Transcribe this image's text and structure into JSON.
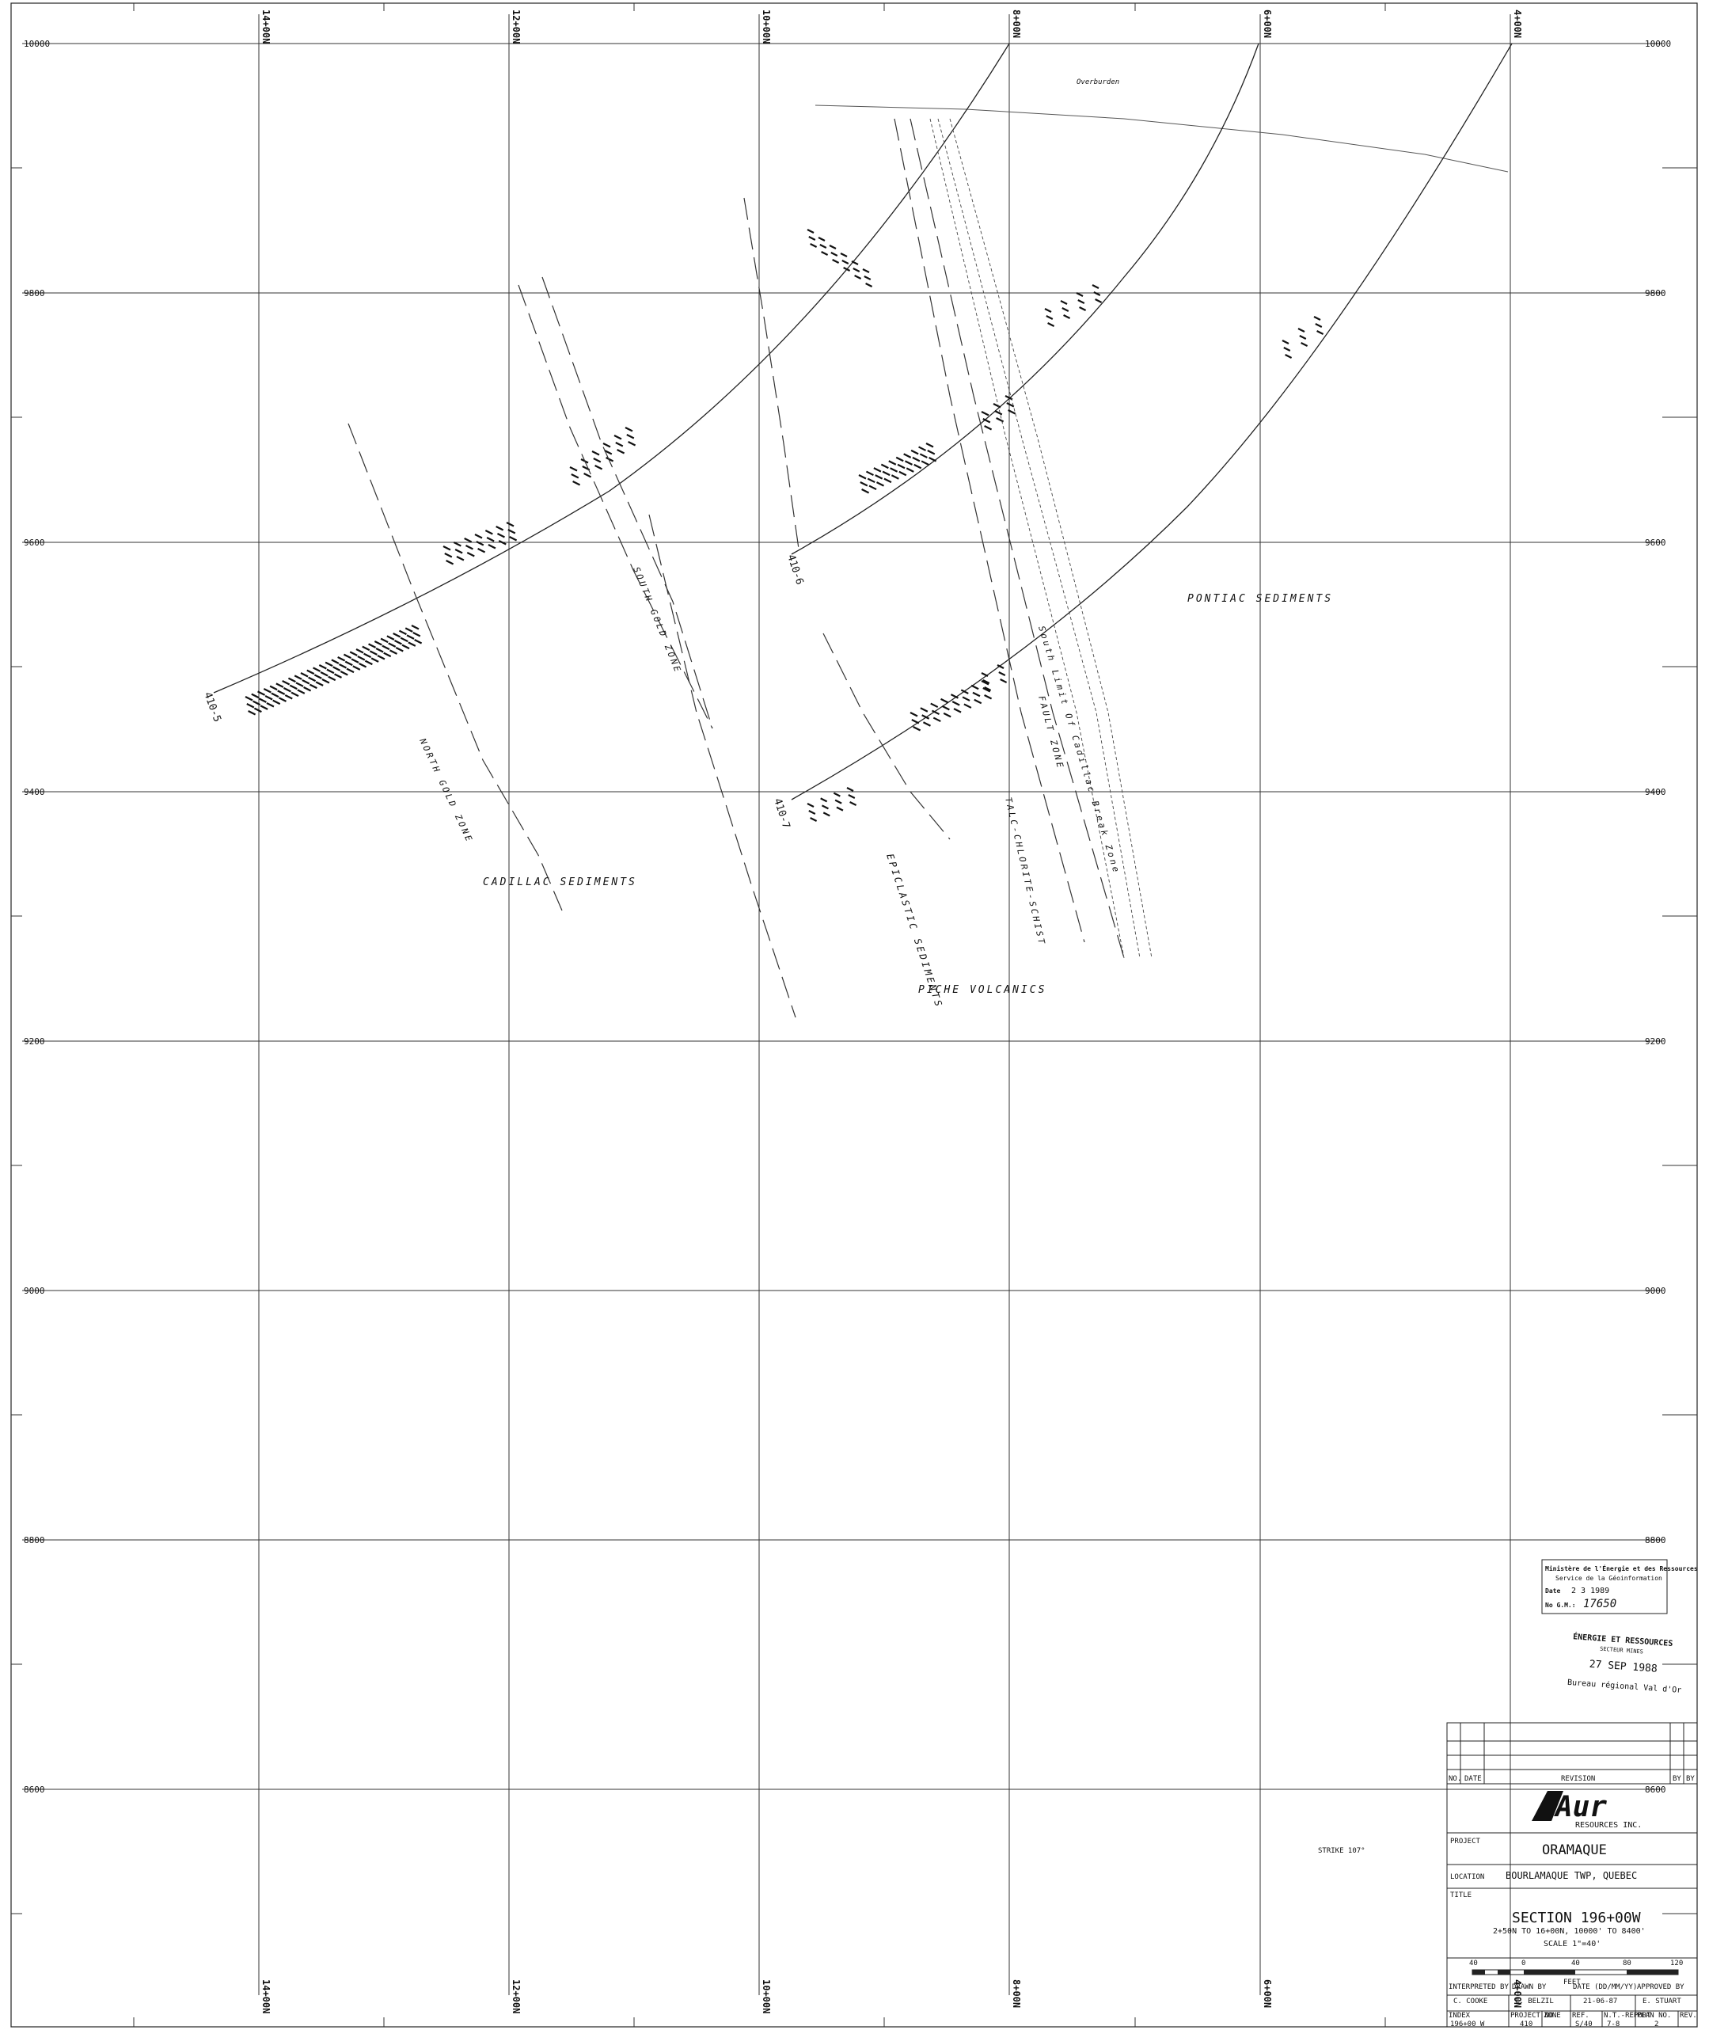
{
  "sheet": {
    "elevation_labels": [
      "10000",
      "9800",
      "9600",
      "9400",
      "9200",
      "9000",
      "8800",
      "8600"
    ],
    "section_labels": [
      "14+00N",
      "12+00N",
      "10+00N",
      "8+00N",
      "6+00N",
      "4+00N"
    ],
    "holes": [
      "410-5",
      "410-6",
      "410-7"
    ],
    "geology": {
      "cadillac": "CADILLAC SEDIMENTS",
      "pontiac": "PONTIAC SEDIMENTS",
      "piche": "PICHE VOLCANICS",
      "epiclastic": "EPICLASTIC SEDIMENTS",
      "north_gold": "NORTH GOLD ZONE",
      "south_gold": "SOUTH GOLD ZONE",
      "talc": "TALC-CHLORITE-SCHIST",
      "south_limit": "South Limit Of Cadillac Break Zone",
      "fault": "FAULT ZONE",
      "overburden": "Overburden"
    },
    "strike": "STRIKE 107°"
  },
  "stamps": {
    "ministry_line1": "Ministère de l'Énergie et des Ressources",
    "ministry_line2": "Service de la Géoinformation",
    "date_label": "Date",
    "date_value": "2 3 1989",
    "gm_label": "No G.M.:",
    "gm_value": "17650",
    "energie_line1": "ÉNERGIE ET RESSOURCES",
    "energie_line2": "SECTEUR MINES",
    "energie_date": "27 SEP 1988",
    "energie_office": "Bureau régional Val d'Or"
  },
  "title_block": {
    "rev_no": "NO.",
    "rev_date": "DATE",
    "rev_revision": "REVISION",
    "rev_by1": "BY",
    "rev_by2": "BY",
    "logo": "Aur",
    "logo_sub": "RESOURCES INC.",
    "project_label": "PROJECT",
    "project": "ORAMAQUE",
    "location_label": "LOCATION",
    "location": "BOURLAMAQUE TWP, QUEBEC",
    "title_label": "TITLE",
    "title": "SECTION 196+00W",
    "subtitle": "2+50N TO 16+00N, 10000' TO 8400'",
    "scale": "SCALE 1\"=40'",
    "scale_ticks": [
      "40",
      "0",
      "40",
      "80",
      "120"
    ],
    "scale_unit": "FEET",
    "interpreted_by_label": "INTERPRETED BY",
    "interpreted_by": "C. COOKE",
    "drawn_by_label": "DRAWN BY",
    "drawn_by": "C. BELZIL",
    "date_label": "DATE (DD/MM/YY)",
    "date": "21-06-87",
    "approved_by_label": "APPROVED BY",
    "approved_by": "E. STUART",
    "index_label": "INDEX",
    "index": "196+00 W",
    "project_no_label": "PROJECT NO.",
    "project_no": "410",
    "zone_label": "ZONE",
    "ref_label": "REF.",
    "ref": "S/40",
    "nt_label": "N.T.-REPORT",
    "nt": "7-8",
    "plan_no_label": "PLAN NO.",
    "plan_no": "2",
    "rev_label": "REV."
  }
}
